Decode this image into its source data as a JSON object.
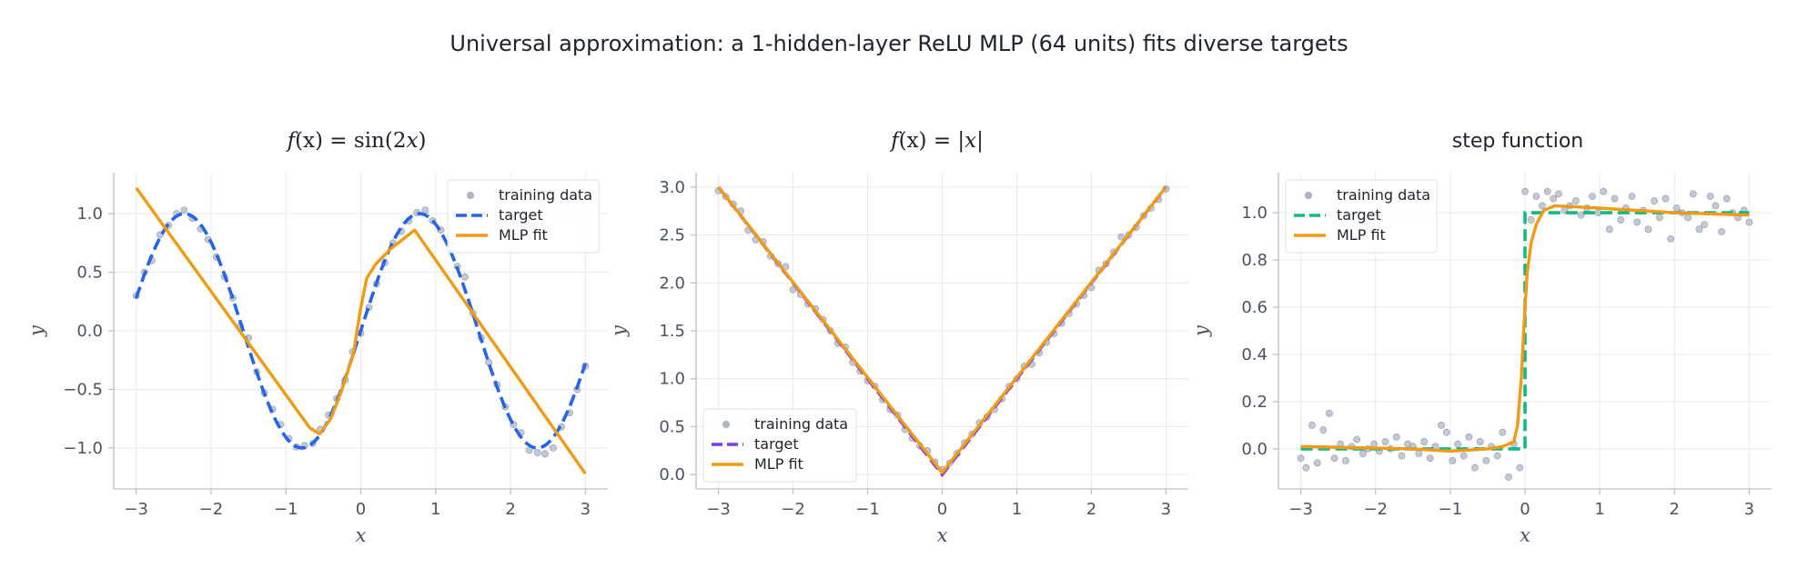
{
  "figure": {
    "suptitle": "Universal approximation: a 1-hidden-layer ReLU MLP (64 units) fits diverse targets"
  },
  "chart_data": [
    {
      "type": "line",
      "title_math": {
        "pre": "f",
        "mid": "(x) = sin(2",
        "var": "x",
        "post": ")"
      },
      "xlabel": "x",
      "ylabel": "y",
      "xlim": [
        -3.3,
        3.3
      ],
      "ylim": [
        -1.35,
        1.35
      ],
      "xticks": [
        -3,
        -2,
        -1,
        0,
        1,
        2,
        3
      ],
      "yticks": [
        -1.0,
        -0.5,
        0.0,
        0.5,
        1.0
      ],
      "grid": true,
      "legend_position": "top-right",
      "legend": [
        "training data",
        "target",
        "MLP fit"
      ],
      "colors": {
        "data": "#aeb6c8",
        "target": "#2563eb",
        "fit": "#f29a13"
      },
      "target_fn": "sin2x",
      "fit": {
        "x": [
          -3,
          -0.68,
          -0.55,
          -0.4,
          -0.25,
          -0.1,
          0.0,
          0.08,
          0.2,
          0.4,
          0.72,
          3
        ],
        "y": [
          1.22,
          -0.83,
          -0.88,
          -0.75,
          -0.5,
          -0.2,
          0.2,
          0.45,
          0.57,
          0.7,
          0.86,
          -1.22
        ]
      },
      "scatter": {
        "x": [
          -3.0,
          -2.89,
          -2.79,
          -2.68,
          -2.57,
          -2.46,
          -2.36,
          -2.25,
          -2.14,
          -2.04,
          -1.93,
          -1.82,
          -1.71,
          -1.61,
          -1.5,
          -1.39,
          -1.29,
          -1.18,
          -1.07,
          -0.96,
          -0.86,
          -0.75,
          -0.64,
          -0.54,
          -0.43,
          -0.32,
          -0.21,
          -0.11,
          0.0,
          0.11,
          0.21,
          0.32,
          0.43,
          0.54,
          0.64,
          0.75,
          0.86,
          0.96,
          1.07,
          1.18,
          1.29,
          1.39,
          1.5,
          1.61,
          1.71,
          1.82,
          1.93,
          2.04,
          2.14,
          2.25,
          2.36,
          2.46,
          2.57,
          2.68,
          2.79,
          2.89,
          3.0
        ],
        "y": [
          0.3,
          0.5,
          0.6,
          0.82,
          0.9,
          1.0,
          1.03,
          0.96,
          0.87,
          0.78,
          0.63,
          0.46,
          0.28,
          0.04,
          -0.06,
          -0.35,
          -0.53,
          -0.67,
          -0.8,
          -0.92,
          -0.99,
          -0.98,
          -0.96,
          -0.84,
          -0.72,
          -0.58,
          -0.42,
          -0.18,
          -0.02,
          0.2,
          0.4,
          0.58,
          0.75,
          0.85,
          0.94,
          1.01,
          1.03,
          0.94,
          0.86,
          0.74,
          0.55,
          0.46,
          0.15,
          -0.06,
          -0.27,
          -0.46,
          -0.65,
          -0.8,
          -0.87,
          -1.02,
          -1.04,
          -1.05,
          -1.0,
          -0.82,
          -0.7,
          -0.5,
          -0.3
        ]
      }
    },
    {
      "type": "line",
      "title_math": {
        "pre": "f",
        "mid": "(x) = |",
        "var": "x",
        "post": "|"
      },
      "xlabel": "x",
      "ylabel": "y",
      "xlim": [
        -3.3,
        3.3
      ],
      "ylim": [
        -0.15,
        3.15
      ],
      "xticks": [
        -3,
        -2,
        -1,
        0,
        1,
        2,
        3
      ],
      "yticks": [
        0.0,
        0.5,
        1.0,
        1.5,
        2.0,
        2.5,
        3.0
      ],
      "grid": true,
      "legend_position": "bottom-left",
      "legend": [
        "training data",
        "target",
        "MLP fit"
      ],
      "colors": {
        "data": "#aeb6c8",
        "target": "#7c3aed",
        "fit": "#f29a13"
      },
      "target_fn": "abs",
      "fit": {
        "x": [
          -3,
          -0.05,
          0.0,
          0.05,
          3
        ],
        "y": [
          3.0,
          0.07,
          0.02,
          0.07,
          3.0
        ]
      },
      "scatter": {
        "x": [
          -3.0,
          -2.9,
          -2.8,
          -2.7,
          -2.6,
          -2.5,
          -2.4,
          -2.3,
          -2.2,
          -2.1,
          -2.0,
          -1.9,
          -1.8,
          -1.7,
          -1.6,
          -1.5,
          -1.4,
          -1.3,
          -1.2,
          -1.1,
          -1.0,
          -0.9,
          -0.8,
          -0.7,
          -0.6,
          -0.5,
          -0.4,
          -0.3,
          -0.2,
          -0.1,
          0.0,
          0.1,
          0.2,
          0.3,
          0.4,
          0.5,
          0.6,
          0.7,
          0.8,
          0.9,
          1.0,
          1.1,
          1.2,
          1.3,
          1.4,
          1.5,
          1.6,
          1.7,
          1.8,
          1.9,
          2.0,
          2.1,
          2.2,
          2.3,
          2.4,
          2.5,
          2.6,
          2.7,
          2.8,
          2.9,
          3.0
        ],
        "y": [
          2.96,
          2.9,
          2.82,
          2.75,
          2.55,
          2.45,
          2.43,
          2.28,
          2.2,
          2.17,
          1.93,
          1.88,
          1.78,
          1.73,
          1.62,
          1.5,
          1.37,
          1.33,
          1.17,
          1.08,
          0.98,
          0.92,
          0.78,
          0.68,
          0.62,
          0.47,
          0.38,
          0.3,
          0.25,
          0.13,
          0.05,
          0.12,
          0.22,
          0.33,
          0.42,
          0.54,
          0.6,
          0.68,
          0.79,
          0.92,
          1.0,
          1.13,
          1.15,
          1.27,
          1.38,
          1.47,
          1.58,
          1.68,
          1.78,
          1.87,
          1.95,
          2.13,
          2.2,
          2.32,
          2.48,
          2.5,
          2.58,
          2.7,
          2.78,
          2.87,
          2.98
        ]
      }
    },
    {
      "type": "line",
      "title": "step function",
      "xlabel": "x",
      "ylabel": "y",
      "xlim": [
        -3.3,
        3.3
      ],
      "ylim": [
        -0.17,
        1.17
      ],
      "xticks": [
        -3,
        -2,
        -1,
        0,
        1,
        2,
        3
      ],
      "yticks": [
        0.0,
        0.2,
        0.4,
        0.6,
        0.8,
        1.0
      ],
      "grid": true,
      "legend_position": "top-left",
      "legend": [
        "training data",
        "target",
        "MLP fit"
      ],
      "colors": {
        "data": "#aeb6c8",
        "target": "#10b981",
        "fit": "#f29a13"
      },
      "target_fn": "step",
      "fit": {
        "x": [
          -3,
          -1.5,
          -1.0,
          -0.5,
          -0.3,
          -0.15,
          -0.1,
          -0.05,
          0.0,
          0.03,
          0.08,
          0.15,
          0.25,
          0.4,
          1.0,
          2.0,
          3.0
        ],
        "y": [
          0.01,
          0.0,
          -0.01,
          0.0,
          0.01,
          0.03,
          0.1,
          0.3,
          0.6,
          0.75,
          0.87,
          0.95,
          1.01,
          1.03,
          1.02,
          1.0,
          0.99
        ]
      },
      "scatter": {
        "x": [
          -3.0,
          -2.93,
          -2.85,
          -2.78,
          -2.7,
          -2.62,
          -2.55,
          -2.47,
          -2.4,
          -2.32,
          -2.25,
          -2.17,
          -2.1,
          -2.02,
          -1.95,
          -1.87,
          -1.8,
          -1.72,
          -1.65,
          -1.57,
          -1.5,
          -1.42,
          -1.35,
          -1.27,
          -1.2,
          -1.12,
          -1.05,
          -0.97,
          -0.9,
          -0.82,
          -0.75,
          -0.67,
          -0.6,
          -0.52,
          -0.45,
          -0.37,
          -0.3,
          -0.22,
          -0.15,
          -0.07,
          0.0,
          0.08,
          0.15,
          0.23,
          0.3,
          0.38,
          0.45,
          0.53,
          0.6,
          0.68,
          0.75,
          0.83,
          0.9,
          0.98,
          1.05,
          1.13,
          1.2,
          1.28,
          1.35,
          1.43,
          1.5,
          1.58,
          1.65,
          1.73,
          1.8,
          1.88,
          1.95,
          2.03,
          2.1,
          2.18,
          2.25,
          2.33,
          2.4,
          2.48,
          2.55,
          2.63,
          2.7,
          2.78,
          2.85,
          2.93,
          3.0
        ],
        "y": [
          -0.04,
          -0.08,
          0.1,
          -0.06,
          0.08,
          0.15,
          -0.04,
          0.02,
          -0.05,
          0.01,
          0.04,
          -0.02,
          0.0,
          0.02,
          -0.01,
          0.03,
          0.0,
          0.05,
          -0.03,
          0.02,
          0.01,
          -0.02,
          0.03,
          -0.04,
          0.01,
          0.1,
          0.07,
          -0.05,
          0.02,
          -0.03,
          0.05,
          -0.08,
          0.03,
          -0.05,
          0.01,
          -0.03,
          0.07,
          -0.12,
          0.02,
          -0.08,
          1.09,
          0.97,
          1.07,
          1.03,
          1.09,
          1.06,
          1.08,
          1.01,
          1.03,
          1.05,
          0.99,
          1.02,
          1.07,
          1.0,
          1.09,
          0.93,
          1.06,
          0.97,
          1.02,
          1.07,
          0.96,
          1.01,
          0.93,
          1.05,
          0.98,
          1.06,
          0.89,
          1.02,
          1.0,
          0.98,
          1.08,
          0.93,
          0.95,
          1.07,
          1.03,
          0.92,
          1.06,
          1.0,
          0.98,
          1.01,
          0.96
        ]
      }
    }
  ]
}
